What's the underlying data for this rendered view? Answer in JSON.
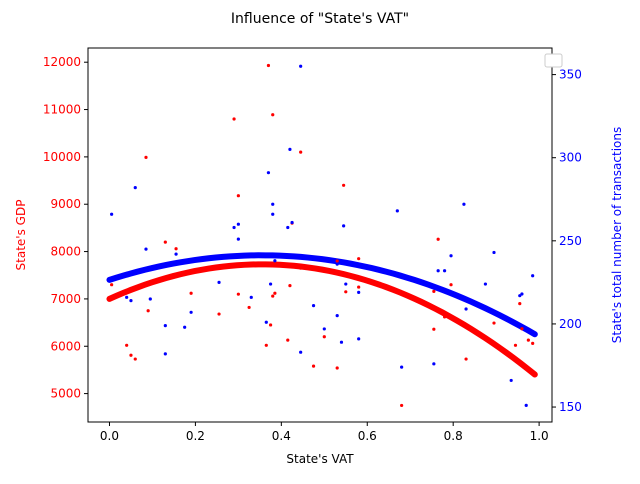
{
  "chart_data": {
    "type": "scatter",
    "title": "Influence of \"State's VAT\"",
    "xlabel": "State's VAT",
    "ylabel_left": "State's GDP",
    "ylabel_right": "State's total number of transactions",
    "xlim": [
      -0.05,
      1.03
    ],
    "ylim_left": [
      4400,
      12300
    ],
    "ylim_right": [
      141,
      366
    ],
    "xticks": [
      0.0,
      0.2,
      0.4,
      0.6,
      0.8,
      1.0
    ],
    "xtick_labels": [
      "0.0",
      "0.2",
      "0.4",
      "0.6",
      "0.8",
      "1.0"
    ],
    "yticks_left": [
      5000,
      6000,
      7000,
      8000,
      9000,
      10000,
      11000,
      12000
    ],
    "ytick_labels_left": [
      "5000",
      "6000",
      "7000",
      "8000",
      "9000",
      "10000",
      "11000",
      "12000"
    ],
    "yticks_right": [
      150,
      200,
      250,
      300,
      350
    ],
    "ytick_labels_right": [
      "150",
      "200",
      "250",
      "300",
      "350"
    ],
    "grid": false,
    "legend": {
      "placement": "top-right",
      "entries": []
    },
    "colors": {
      "gdp": "#ff0000",
      "transactions": "#0000ff",
      "axes": "#000000"
    },
    "series": [
      {
        "axis": "left",
        "color": "#ff0000",
        "points": [
          [
            0.005,
            7300
          ],
          [
            0.04,
            6020
          ],
          [
            0.05,
            5810
          ],
          [
            0.06,
            5730
          ],
          [
            0.085,
            9990
          ],
          [
            0.09,
            6750
          ],
          [
            0.13,
            8200
          ],
          [
            0.155,
            8060
          ],
          [
            0.19,
            7120
          ],
          [
            0.255,
            6680
          ],
          [
            0.29,
            10800
          ],
          [
            0.3,
            9180
          ],
          [
            0.3,
            7100
          ],
          [
            0.325,
            6820
          ],
          [
            0.365,
            6020
          ],
          [
            0.37,
            11930
          ],
          [
            0.375,
            6450
          ],
          [
            0.38,
            7060
          ],
          [
            0.38,
            10890
          ],
          [
            0.385,
            7120
          ],
          [
            0.415,
            6130
          ],
          [
            0.42,
            7280
          ],
          [
            0.425,
            8600
          ],
          [
            0.445,
            10100
          ],
          [
            0.445,
            7650
          ],
          [
            0.475,
            5580
          ],
          [
            0.5,
            6200
          ],
          [
            0.53,
            7800
          ],
          [
            0.53,
            5540
          ],
          [
            0.545,
            9400
          ],
          [
            0.55,
            7150
          ],
          [
            0.58,
            7850
          ],
          [
            0.58,
            7250
          ],
          [
            0.605,
            7400
          ],
          [
            0.68,
            4750
          ],
          [
            0.755,
            7160
          ],
          [
            0.755,
            6360
          ],
          [
            0.765,
            8260
          ],
          [
            0.78,
            6620
          ],
          [
            0.795,
            7300
          ],
          [
            0.825,
            6430
          ],
          [
            0.83,
            5730
          ],
          [
            0.895,
            6490
          ],
          [
            0.945,
            6020
          ],
          [
            0.955,
            6900
          ],
          [
            0.96,
            6370
          ],
          [
            0.975,
            6130
          ],
          [
            0.985,
            6060
          ]
        ]
      },
      {
        "axis": "right",
        "color": "#0000ff",
        "points": [
          [
            0.005,
            266
          ],
          [
            0.04,
            216
          ],
          [
            0.05,
            214
          ],
          [
            0.06,
            282
          ],
          [
            0.085,
            245
          ],
          [
            0.095,
            215
          ],
          [
            0.13,
            199
          ],
          [
            0.13,
            182
          ],
          [
            0.155,
            242
          ],
          [
            0.175,
            198
          ],
          [
            0.19,
            207
          ],
          [
            0.255,
            225
          ],
          [
            0.29,
            258
          ],
          [
            0.3,
            260
          ],
          [
            0.3,
            251
          ],
          [
            0.33,
            216
          ],
          [
            0.365,
            201
          ],
          [
            0.37,
            291
          ],
          [
            0.375,
            224
          ],
          [
            0.38,
            272
          ],
          [
            0.38,
            266
          ],
          [
            0.385,
            238
          ],
          [
            0.415,
            258
          ],
          [
            0.42,
            305
          ],
          [
            0.425,
            261
          ],
          [
            0.445,
            183
          ],
          [
            0.445,
            355
          ],
          [
            0.475,
            211
          ],
          [
            0.5,
            197
          ],
          [
            0.53,
            205
          ],
          [
            0.53,
            236
          ],
          [
            0.54,
            189
          ],
          [
            0.545,
            259
          ],
          [
            0.55,
            224
          ],
          [
            0.58,
            191
          ],
          [
            0.58,
            219
          ],
          [
            0.67,
            268
          ],
          [
            0.68,
            174
          ],
          [
            0.755,
            176
          ],
          [
            0.765,
            232
          ],
          [
            0.78,
            232
          ],
          [
            0.795,
            241
          ],
          [
            0.825,
            272
          ],
          [
            0.83,
            209
          ],
          [
            0.875,
            224
          ],
          [
            0.895,
            243
          ],
          [
            0.935,
            166
          ],
          [
            0.955,
            217
          ],
          [
            0.96,
            218
          ],
          [
            0.97,
            151
          ],
          [
            0.985,
            229
          ]
        ]
      }
    ],
    "fits": [
      {
        "axis": "left",
        "color": "#ff0000",
        "x_range": [
          0.0,
          0.99
        ],
        "coefficients": [
          7000,
          4110,
          -5780
        ]
      },
      {
        "axis": "right",
        "color": "#0000ff",
        "x_range": [
          0.0,
          0.99
        ],
        "coefficients": [
          226.5,
          83.4,
          -117.6
        ]
      }
    ]
  }
}
